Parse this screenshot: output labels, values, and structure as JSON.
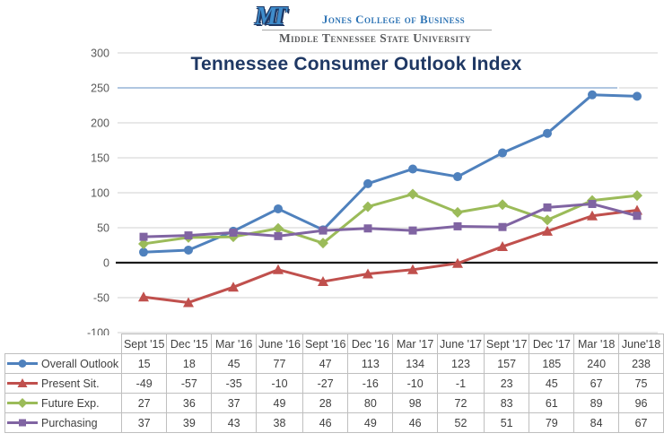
{
  "header": {
    "logo_text": "MT",
    "college": "Jones College of Business",
    "university": "Middle Tennessee State University"
  },
  "chart_data": {
    "type": "line",
    "title": "Tennessee Consumer Outlook Index",
    "categories": [
      "Sept '15",
      "Dec '15",
      "Mar '16",
      "June '16",
      "Sept '16",
      "Dec '16",
      "Mar '17",
      "June '17",
      "Sept '17",
      "Dec '17",
      "Mar '18",
      "June'18"
    ],
    "series": [
      {
        "name": "Overall Outlook",
        "marker": "circle",
        "color": "#4f81bd",
        "values": [
          15,
          18,
          45,
          77,
          47,
          113,
          134,
          123,
          157,
          185,
          240,
          238
        ]
      },
      {
        "name": "Present Sit.",
        "marker": "triangle",
        "color": "#c0504d",
        "values": [
          -49,
          -57,
          -35,
          -10,
          -27,
          -16,
          -10,
          -1,
          23,
          45,
          67,
          75
        ]
      },
      {
        "name": "Future Exp.",
        "marker": "diamond",
        "color": "#9bbb59",
        "values": [
          27,
          36,
          37,
          49,
          28,
          80,
          98,
          72,
          83,
          61,
          89,
          96
        ]
      },
      {
        "name": "Purchasing",
        "marker": "square",
        "color": "#8064a2",
        "values": [
          37,
          39,
          43,
          38,
          46,
          49,
          46,
          52,
          51,
          79,
          84,
          67
        ]
      }
    ],
    "ylim": [
      -100,
      300
    ],
    "yticks": [
      300,
      250,
      200,
      150,
      100,
      50,
      0,
      -50,
      -100
    ],
    "grid": true,
    "zero_axis_value": 0,
    "highlight_gridline_value": 250,
    "legend_position": "table-first-column",
    "colors": {
      "title": "#1f3864",
      "axis_labels": "#595959",
      "gridline": "#d9d9d9",
      "highlight_gridline": "#95b3d7",
      "zero_line": "#1a1a1a",
      "table_border": "#bfbfbf",
      "table_text": "#404040"
    }
  }
}
